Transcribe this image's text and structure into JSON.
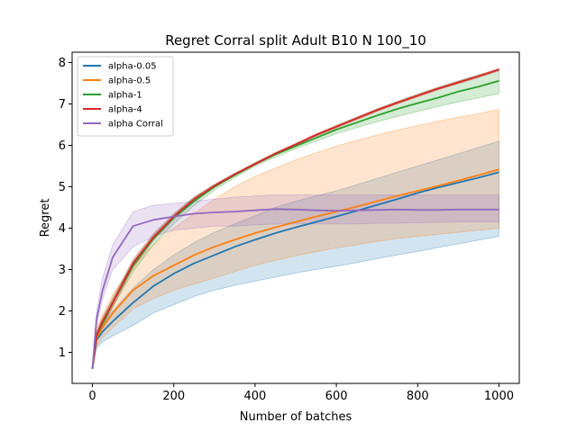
{
  "chart_data": {
    "type": "line",
    "title": "Regret Corral split Adult B10 N 100_10",
    "xlabel": "Number of batches",
    "ylabel": "Regret",
    "xlim": [
      -50,
      1050
    ],
    "ylim": [
      0.25,
      8.25
    ],
    "xticks": [
      0,
      200,
      400,
      600,
      800,
      1000
    ],
    "yticks": [
      1,
      2,
      3,
      4,
      5,
      6,
      7,
      8
    ],
    "grid": false,
    "legend_position": "top-left",
    "x": [
      0,
      10,
      25,
      50,
      100,
      150,
      200,
      250,
      300,
      350,
      400,
      450,
      500,
      550,
      600,
      650,
      700,
      750,
      800,
      850,
      900,
      950,
      1000
    ],
    "series": [
      {
        "name": "alpha-0.05",
        "color": "#1f77b4",
        "mean": [
          0.6,
          1.3,
          1.5,
          1.75,
          2.2,
          2.6,
          2.9,
          3.15,
          3.35,
          3.55,
          3.72,
          3.88,
          4.02,
          4.15,
          4.28,
          4.42,
          4.56,
          4.7,
          4.85,
          4.98,
          5.1,
          5.22,
          5.35
        ],
        "lower": [
          0.6,
          1.1,
          1.25,
          1.4,
          1.65,
          1.95,
          2.15,
          2.35,
          2.5,
          2.62,
          2.72,
          2.82,
          2.92,
          3.0,
          3.08,
          3.17,
          3.26,
          3.35,
          3.44,
          3.53,
          3.62,
          3.71,
          3.8
        ],
        "upper": [
          0.7,
          1.45,
          1.7,
          2.0,
          2.55,
          3.0,
          3.35,
          3.65,
          3.9,
          4.1,
          4.3,
          4.5,
          4.65,
          4.78,
          4.9,
          5.05,
          5.2,
          5.35,
          5.5,
          5.65,
          5.8,
          5.95,
          6.1
        ]
      },
      {
        "name": "alpha-0.5",
        "color": "#ff7f0e",
        "mean": [
          0.6,
          1.35,
          1.6,
          1.95,
          2.5,
          2.85,
          3.1,
          3.35,
          3.55,
          3.72,
          3.88,
          4.02,
          4.15,
          4.28,
          4.4,
          4.52,
          4.65,
          4.78,
          4.9,
          5.02,
          5.15,
          5.28,
          5.42
        ],
        "lower": [
          0.6,
          1.15,
          1.35,
          1.6,
          2.05,
          2.3,
          2.5,
          2.65,
          2.8,
          2.95,
          3.1,
          3.22,
          3.33,
          3.43,
          3.52,
          3.6,
          3.68,
          3.75,
          3.8,
          3.85,
          3.9,
          3.95,
          4.0
        ],
        "upper": [
          0.7,
          1.6,
          1.9,
          2.4,
          3.1,
          3.6,
          4.0,
          4.35,
          4.7,
          5.0,
          5.25,
          5.45,
          5.65,
          5.82,
          5.98,
          6.12,
          6.25,
          6.37,
          6.48,
          6.58,
          6.68,
          6.77,
          6.87
        ]
      },
      {
        "name": "alpha-1",
        "color": "#2ca02c",
        "mean": [
          0.6,
          1.4,
          1.7,
          2.2,
          3.1,
          3.75,
          4.25,
          4.65,
          5.0,
          5.28,
          5.55,
          5.78,
          5.98,
          6.18,
          6.38,
          6.55,
          6.72,
          6.88,
          7.02,
          7.15,
          7.3,
          7.42,
          7.56
        ],
        "lower": [
          0.6,
          1.3,
          1.6,
          2.1,
          2.95,
          3.6,
          4.1,
          4.55,
          4.92,
          5.22,
          5.5,
          5.72,
          5.92,
          6.1,
          6.28,
          6.43,
          6.57,
          6.7,
          6.82,
          6.94,
          7.05,
          7.15,
          7.25
        ],
        "upper": [
          0.7,
          1.5,
          1.8,
          2.3,
          3.2,
          3.85,
          4.35,
          4.75,
          5.05,
          5.32,
          5.58,
          5.82,
          6.04,
          6.26,
          6.48,
          6.68,
          6.88,
          7.06,
          7.24,
          7.4,
          7.56,
          7.7,
          7.84
        ]
      },
      {
        "name": "alpha-4",
        "color": "#d62728",
        "mean": [
          0.6,
          1.4,
          1.75,
          2.2,
          3.15,
          3.78,
          4.28,
          4.7,
          5.02,
          5.3,
          5.55,
          5.8,
          6.02,
          6.25,
          6.45,
          6.65,
          6.85,
          7.03,
          7.2,
          7.37,
          7.52,
          7.67,
          7.83
        ],
        "lower": [
          0.6,
          1.3,
          1.65,
          2.1,
          3.05,
          3.7,
          4.22,
          4.65,
          4.98,
          5.27,
          5.52,
          5.77,
          6.0,
          6.22,
          6.42,
          6.62,
          6.82,
          7.0,
          7.17,
          7.34,
          7.49,
          7.64,
          7.8
        ],
        "upper": [
          0.7,
          1.5,
          1.85,
          2.3,
          3.25,
          3.86,
          4.34,
          4.75,
          5.06,
          5.33,
          5.58,
          5.83,
          6.05,
          6.28,
          6.48,
          6.68,
          6.88,
          7.06,
          7.23,
          7.4,
          7.55,
          7.7,
          7.86
        ]
      },
      {
        "name": "alpha Corral",
        "color": "#9467bd",
        "mean": [
          0.6,
          1.8,
          2.5,
          3.3,
          4.05,
          4.2,
          4.28,
          4.35,
          4.38,
          4.4,
          4.43,
          4.46,
          4.45,
          4.43,
          4.42,
          4.43,
          4.44,
          4.45,
          4.44,
          4.44,
          4.45,
          4.45,
          4.45
        ],
        "lower": [
          0.6,
          1.65,
          2.3,
          3.0,
          3.55,
          3.8,
          3.95,
          4.0,
          4.05,
          4.05,
          4.08,
          4.1,
          4.1,
          4.1,
          4.1,
          4.1,
          4.12,
          4.12,
          4.13,
          4.14,
          4.15,
          4.15,
          4.15
        ],
        "upper": [
          0.7,
          2.0,
          2.8,
          3.6,
          4.4,
          4.55,
          4.6,
          4.65,
          4.7,
          4.75,
          4.78,
          4.8,
          4.8,
          4.8,
          4.8,
          4.8,
          4.8,
          4.8,
          4.8,
          4.8,
          4.8,
          4.8,
          4.8
        ]
      }
    ]
  }
}
